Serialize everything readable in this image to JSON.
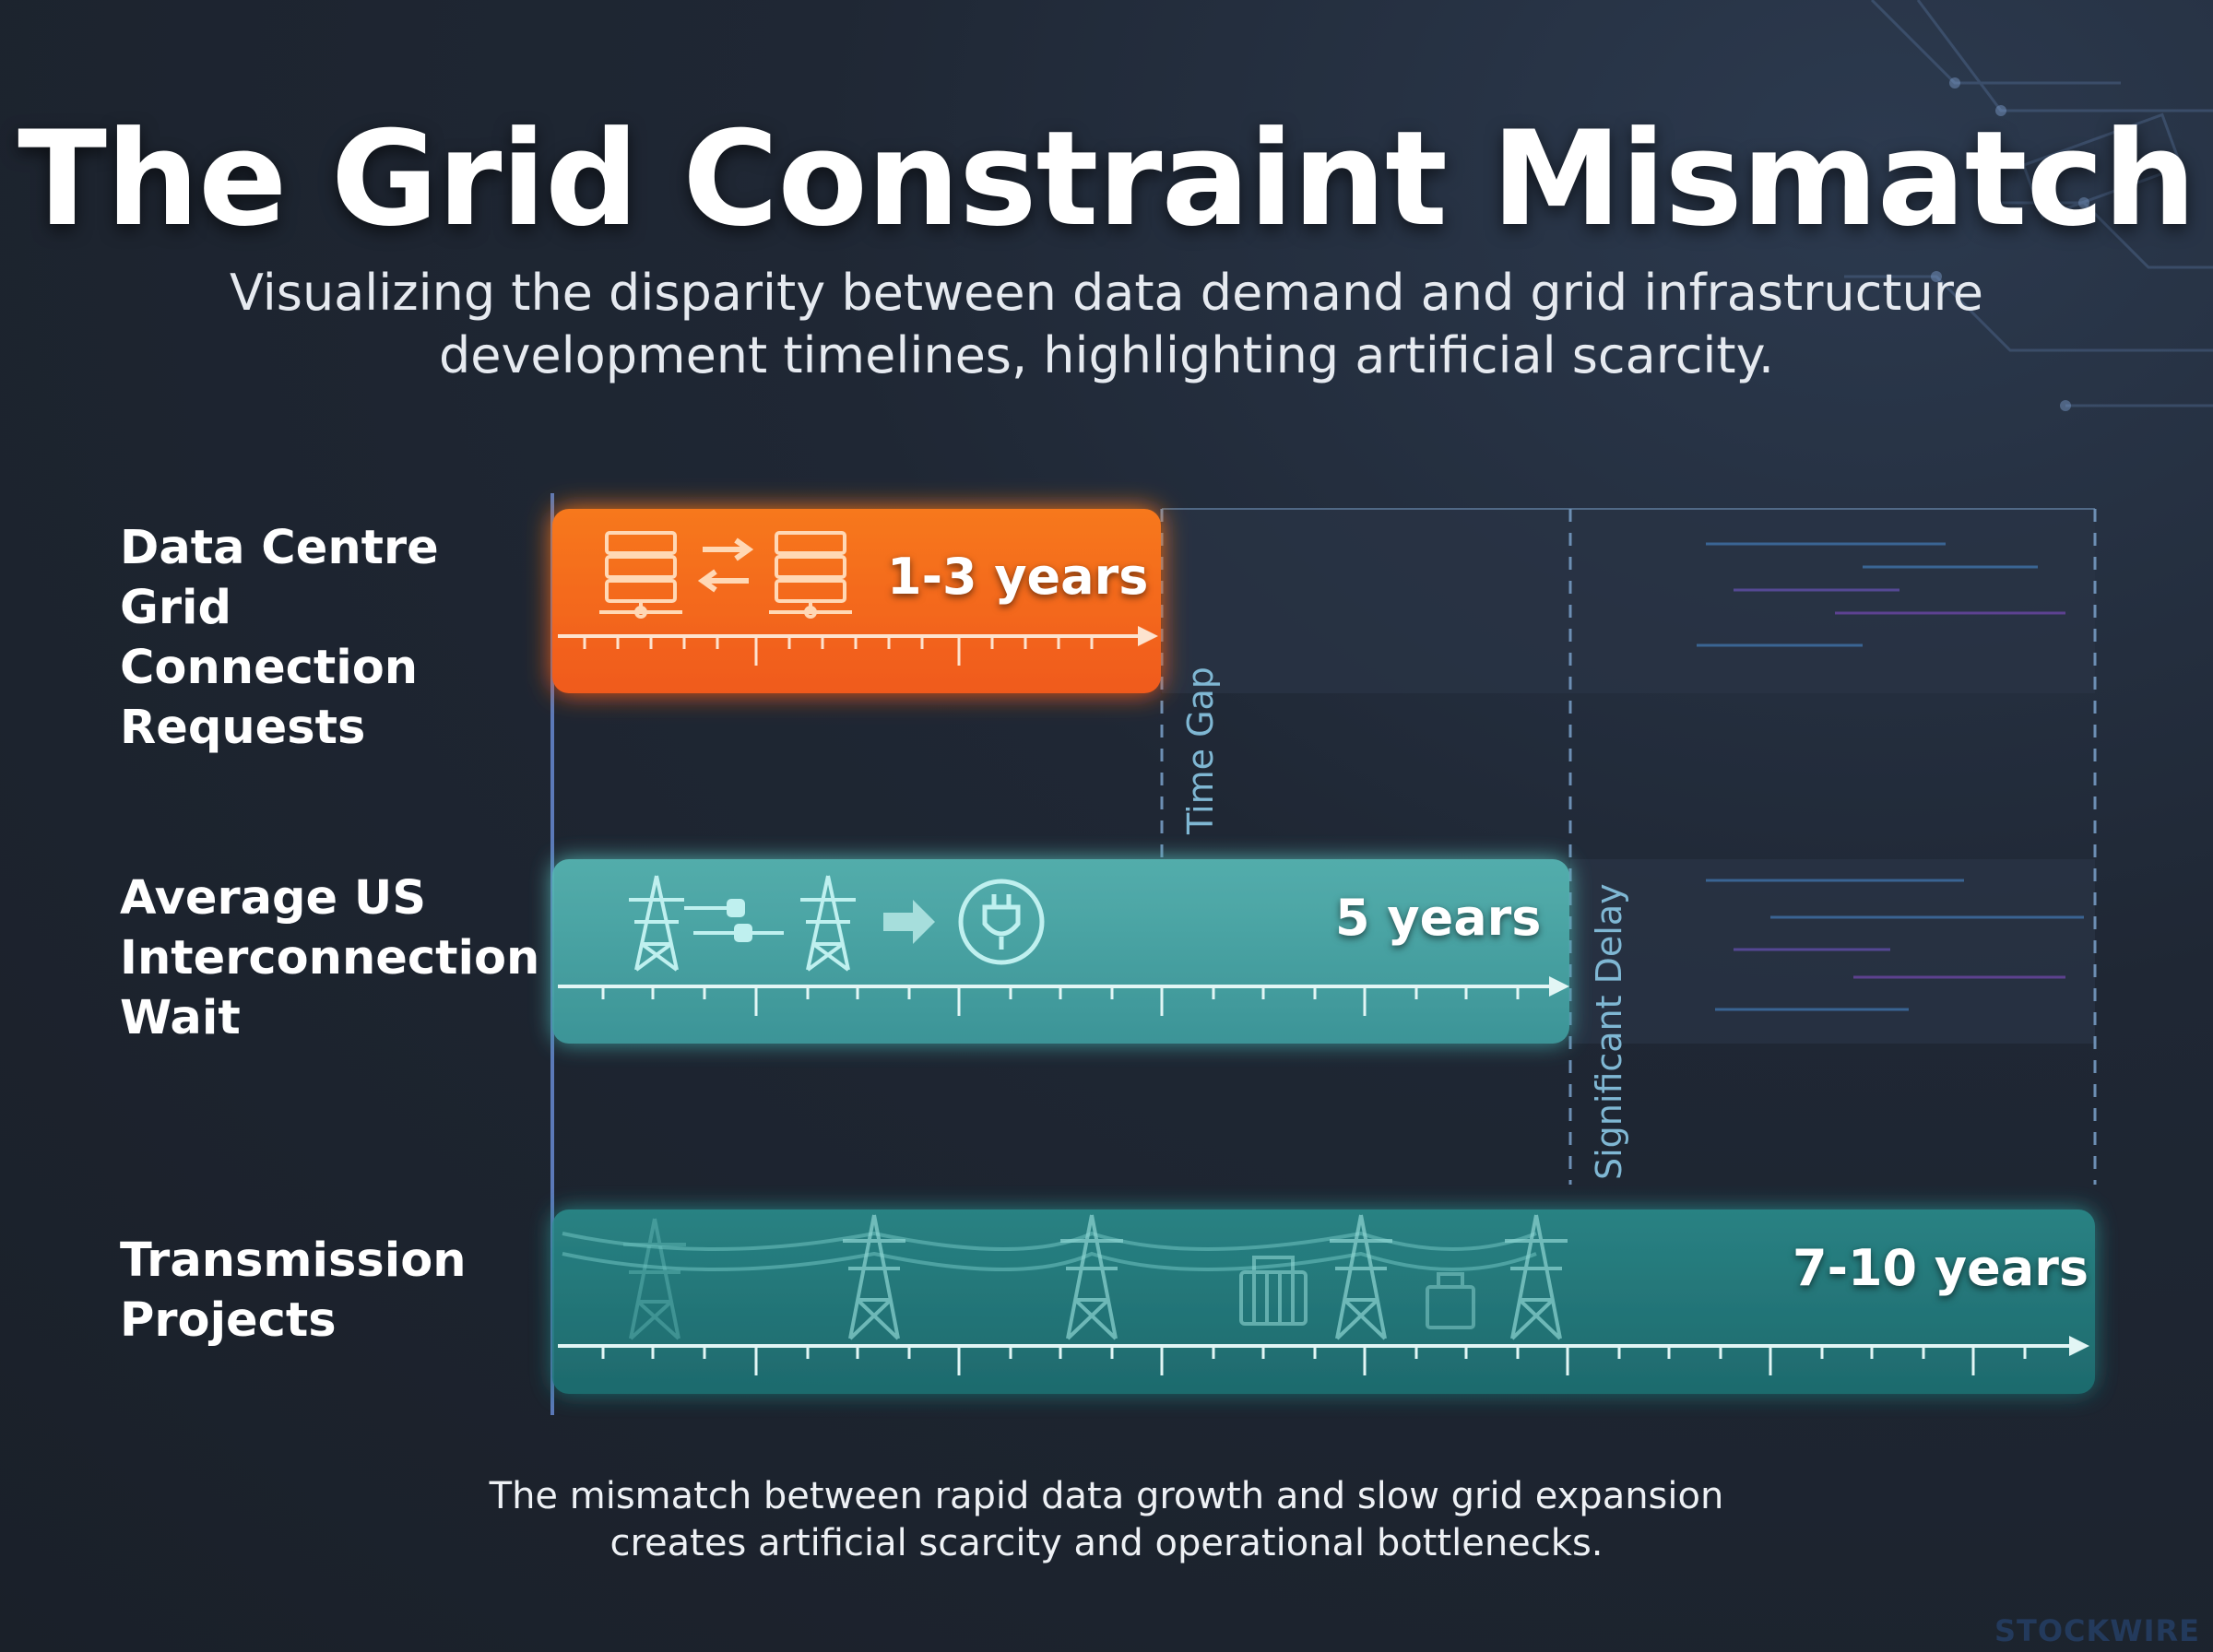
{
  "header": {
    "title": "The Grid Constraint Mismatch",
    "subtitle_line1": "Visualizing the disparity between data demand and grid infrastructure",
    "subtitle_line2": "development timelines, highlighting artificial scarcity."
  },
  "rows": [
    {
      "label_lines": [
        "Data Centre Grid",
        "Connection",
        "Requests"
      ],
      "duration_label": "1-3 years",
      "color": "#f26a1f",
      "icons": [
        "server-icon",
        "exchange-arrows-icon",
        "server-icon"
      ]
    },
    {
      "label_lines": [
        "Average US",
        "Interconnection",
        "Wait"
      ],
      "duration_label": "5 years",
      "color": "#4fb3b1",
      "icons": [
        "transmission-tower-icon",
        "plug-connector-icon",
        "transmission-tower-icon",
        "arrow-right-icon",
        "power-plug-icon"
      ]
    },
    {
      "label_lines": [
        "Transmission",
        "Projects"
      ],
      "duration_label": "7-10 years",
      "color": "#2a8e8e",
      "icons": [
        "transmission-tower-icon",
        "transformer-icon"
      ]
    }
  ],
  "annotations": {
    "time_gap": "Time Gap",
    "significant_delay": "Significant Delay"
  },
  "footer": {
    "line1": "The mismatch between rapid data growth and slow grid expansion",
    "line2": "creates artificial scarcity and operational bottlenecks."
  },
  "brand": "STOCKWIRE"
}
